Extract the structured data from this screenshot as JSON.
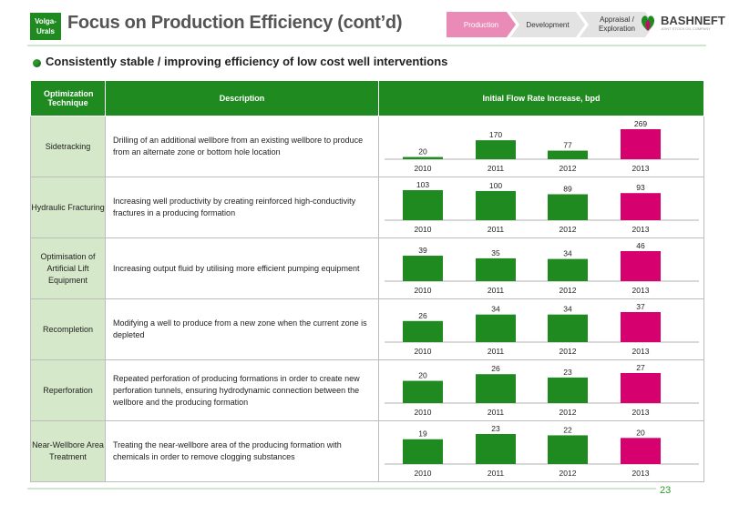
{
  "header": {
    "badge": "Volga-\nUrals",
    "title": "Focus on Production Efficiency (cont’d)",
    "nav": [
      "Production",
      "Development",
      "Appraisal / Exploration"
    ],
    "logo_name": "BASHNEFT",
    "logo_sub": "JOINT STOCK OIL COMPANY",
    "colors": {
      "green": "#1f8a1f",
      "pink": "#d6006f",
      "nav_active": "#e98bb6"
    }
  },
  "subtitle": "Consistently stable / improving efficiency of low cost well interventions",
  "table": {
    "headers": [
      "Optimization Technique",
      "Description",
      "Initial Flow Rate Increase, bpd"
    ]
  },
  "rows": [
    {
      "technique": "Sidetracking",
      "description": "Drilling of an additional wellbore from an existing wellbore to produce from an alternate zone or bottom hole location"
    },
    {
      "technique": "Hydraulic Fracturing",
      "description": "Increasing well productivity by creating reinforced high-conductivity fractures in a producing formation"
    },
    {
      "technique": "Optimisation of Artificial Lift Equipment",
      "description": "Increasing output fluid by utilising more efficient pumping equipment"
    },
    {
      "technique": "Recompletion",
      "description": "Modifying a well to produce from a new zone when the current zone is depleted"
    },
    {
      "technique": "Reperforation",
      "description": "Repeated perforation of producing formations in order to create new perforation tunnels, ensuring hydrodynamic connection between the wellbore and the producing formation"
    },
    {
      "technique": "Near-Wellbore Area Treatment",
      "description": "Treating the near-wellbore area of the producing formation with chemicals in order to remove clogging substances"
    }
  ],
  "chart_data": [
    {
      "type": "bar",
      "categories": [
        "2010",
        "2011",
        "2012",
        "2013"
      ],
      "values": [
        20,
        170,
        77,
        269
      ],
      "colors": [
        "#1f8a1f",
        "#1f8a1f",
        "#1f8a1f",
        "#d6006f"
      ]
    },
    {
      "type": "bar",
      "categories": [
        "2010",
        "2011",
        "2012",
        "2013"
      ],
      "values": [
        103,
        100,
        89,
        93
      ],
      "colors": [
        "#1f8a1f",
        "#1f8a1f",
        "#1f8a1f",
        "#d6006f"
      ]
    },
    {
      "type": "bar",
      "categories": [
        "2010",
        "2011",
        "2012",
        "2013"
      ],
      "values": [
        39,
        35,
        34,
        46
      ],
      "colors": [
        "#1f8a1f",
        "#1f8a1f",
        "#1f8a1f",
        "#d6006f"
      ]
    },
    {
      "type": "bar",
      "categories": [
        "2010",
        "2011",
        "2012",
        "2013"
      ],
      "values": [
        26,
        34,
        34,
        37
      ],
      "colors": [
        "#1f8a1f",
        "#1f8a1f",
        "#1f8a1f",
        "#d6006f"
      ]
    },
    {
      "type": "bar",
      "categories": [
        "2010",
        "2011",
        "2012",
        "2013"
      ],
      "values": [
        20,
        26,
        23,
        27
      ],
      "colors": [
        "#1f8a1f",
        "#1f8a1f",
        "#1f8a1f",
        "#d6006f"
      ]
    },
    {
      "type": "bar",
      "categories": [
        "2010",
        "2011",
        "2012",
        "2013"
      ],
      "values": [
        19,
        23,
        22,
        20
      ],
      "colors": [
        "#1f8a1f",
        "#1f8a1f",
        "#1f8a1f",
        "#d6006f"
      ]
    }
  ],
  "footer": {
    "page_number": "23"
  }
}
